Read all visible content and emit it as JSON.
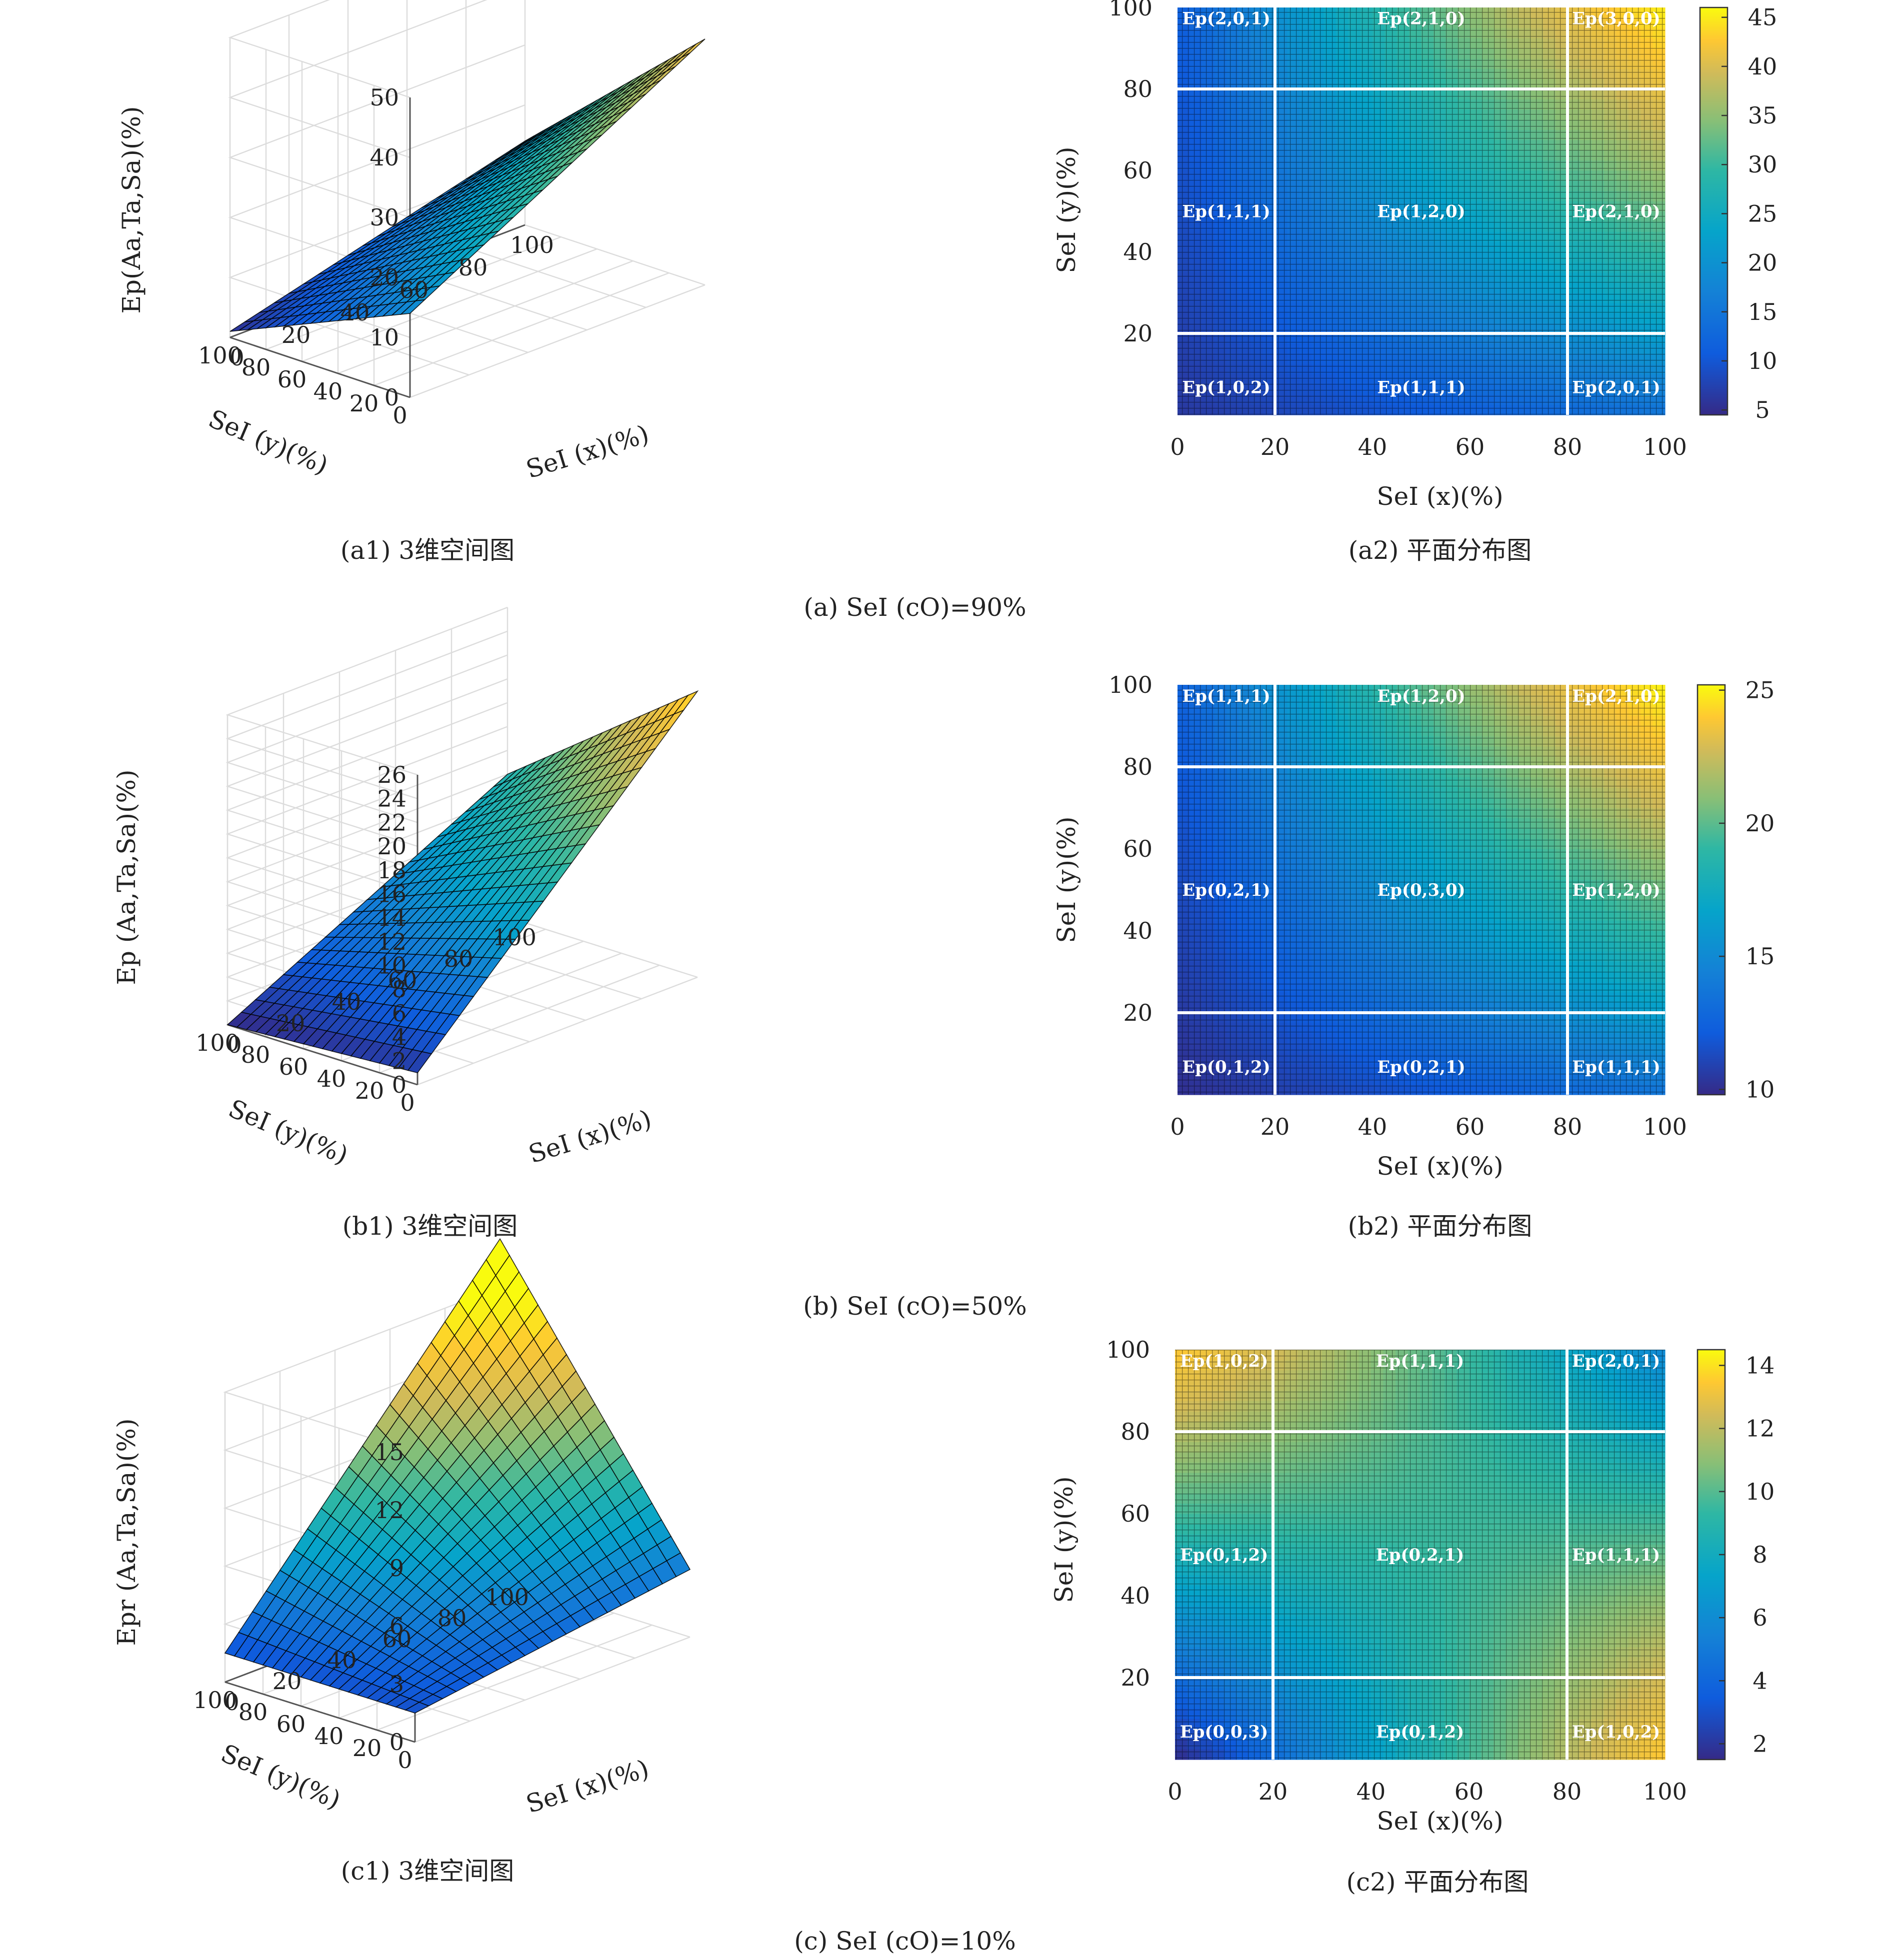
{
  "figure": {
    "panels": [
      {
        "caption": "(a) SeI (cO)=90%",
        "surface": {
          "caption": "(a1) 3维空间图",
          "zlabel": "Ep(Aa,Ta,Sa)(%)",
          "xlabel": "SeI (x)(%)",
          "ylabel": "SeI (y)(%)"
        },
        "map": {
          "caption": "(a2) 平面分布图",
          "xlabel": "SeI (x)(%)",
          "ylabel": "SeI (y)(%)"
        }
      },
      {
        "caption": "(b) SeI (cO)=50%",
        "surface": {
          "caption": "(b1) 3维空间图",
          "zlabel": "Ep (Aa,Ta,Sa)(%)",
          "xlabel": "SeI (x)(%)",
          "ylabel": "SeI (y)(%)"
        },
        "map": {
          "caption": "(b2) 平面分布图",
          "xlabel": "SeI (x)(%)",
          "ylabel": "SeI (y)(%)"
        }
      },
      {
        "caption": "(c) SeI (cO)=10%",
        "surface": {
          "caption": "(c1) 3维空间图",
          "zlabel": "Epr (Aa,Ta,Sa)(%)",
          "xlabel": "SeI (x)(%)",
          "ylabel": "SeI (y)(%)"
        },
        "map": {
          "caption": "(c2) 平面分布图",
          "xlabel": "SeI (x)(%)",
          "ylabel": "SeI (y)(%)"
        }
      }
    ]
  },
  "chart_data": [
    {
      "type": "surface",
      "x_ticks": [
        "0",
        "20",
        "40",
        "60",
        "80",
        "100"
      ],
      "y_ticks": [
        "0",
        "20",
        "40",
        "60",
        "80",
        "100"
      ],
      "z_ticks": [
        "0",
        "10",
        "20",
        "30",
        "40",
        "50"
      ],
      "zlim": [
        0,
        50
      ],
      "corner_values": {
        "x0_y0": 14,
        "x100_y0": 41,
        "x0_y100": 1,
        "x100_y100": 14
      },
      "color_scale": "parula",
      "grid": true
    },
    {
      "type": "heatmap",
      "x_ticks": [
        "0",
        "20",
        "40",
        "60",
        "80",
        "100"
      ],
      "y_ticks": [
        "20",
        "40",
        "60",
        "80",
        "100"
      ],
      "colorbar_ticks": [
        "5",
        "10",
        "15",
        "20",
        "25",
        "30",
        "35",
        "40",
        "45"
      ],
      "clim": [
        4.5,
        46
      ],
      "corner_values": {
        "x0_y0": 6,
        "x100_y0": 13,
        "x0_y100": 10,
        "x100_y100": 45
      },
      "boundaries": [
        20,
        80
      ],
      "regions": [
        [
          "Ep(2,0,1)",
          "Ep(2,1,0)",
          "Ep(3,0,0)"
        ],
        [
          "Ep(1,1,1)",
          "Ep(1,2,0)",
          "Ep(2,1,0)"
        ],
        [
          "Ep(1,0,2)",
          "Ep(1,1,1)",
          "Ep(2,0,1)"
        ]
      ]
    },
    {
      "type": "surface",
      "x_ticks": [
        "0",
        "20",
        "40",
        "60",
        "80",
        "100"
      ],
      "y_ticks": [
        "0",
        "20",
        "40",
        "60",
        "80",
        "100"
      ],
      "z_ticks": [
        "0",
        "2",
        "4",
        "6",
        "8",
        "10",
        "12",
        "14",
        "16",
        "18",
        "20",
        "22",
        "24",
        "26"
      ],
      "zlim": [
        0,
        26
      ],
      "corner_values": {
        "x0_y0": 1,
        "x100_y0": 24,
        "x0_y100": 0,
        "x100_y100": 12
      },
      "color_scale": "parula",
      "grid": true
    },
    {
      "type": "heatmap",
      "x_ticks": [
        "0",
        "20",
        "40",
        "60",
        "80",
        "100"
      ],
      "y_ticks": [
        "20",
        "40",
        "60",
        "80",
        "100"
      ],
      "colorbar_ticks": [
        "10",
        "15",
        "20",
        "25"
      ],
      "clim": [
        9.8,
        25.2
      ],
      "corner_values": {
        "x0_y0": 10,
        "x100_y0": 13,
        "x0_y100": 12,
        "x100_y100": 25
      },
      "boundaries": [
        20,
        80
      ],
      "regions": [
        [
          "Ep(1,1,1)",
          "Ep(1,2,0)",
          "Ep(2,1,0)"
        ],
        [
          "Ep(0,2,1)",
          "Ep(0,3,0)",
          "Ep(1,2,0)"
        ],
        [
          "Ep(0,1,2)",
          "Ep(0,2,1)",
          "Ep(1,1,1)"
        ]
      ]
    },
    {
      "type": "surface",
      "x_ticks": [
        "0",
        "20",
        "40",
        "60",
        "80",
        "100"
      ],
      "y_ticks": [
        "0",
        "20",
        "40",
        "60",
        "80",
        "100"
      ],
      "z_ticks": [
        "0",
        "3",
        "6",
        "9",
        "12",
        "15"
      ],
      "zlim": [
        0,
        15
      ],
      "corner_values": {
        "x0_y0": 1.5,
        "x100_y0": 3.5,
        "x0_y100": 1.5,
        "x100_y100": 17.5
      },
      "color_scale": "parula",
      "grid": true
    },
    {
      "type": "heatmap",
      "x_ticks": [
        "0",
        "20",
        "40",
        "60",
        "80",
        "100"
      ],
      "y_ticks": [
        "20",
        "40",
        "60",
        "80",
        "100"
      ],
      "colorbar_ticks": [
        "2",
        "4",
        "6",
        "8",
        "10",
        "12",
        "14"
      ],
      "clim": [
        1.5,
        14.5
      ],
      "corner_values": {
        "x0_y0": 1.5,
        "x100_y0": 13,
        "x0_y100": 13,
        "x100_y100": 5
      },
      "boundaries": [
        20,
        80
      ],
      "regions": [
        [
          "Ep(1,0,2)",
          "Ep(1,1,1)",
          "Ep(2,0,1)"
        ],
        [
          "Ep(0,1,2)",
          "Ep(0,2,1)",
          "Ep(1,1,1)"
        ],
        [
          "Ep(0,0,3)",
          "Ep(0,1,2)",
          "Ep(1,0,2)"
        ]
      ]
    }
  ]
}
